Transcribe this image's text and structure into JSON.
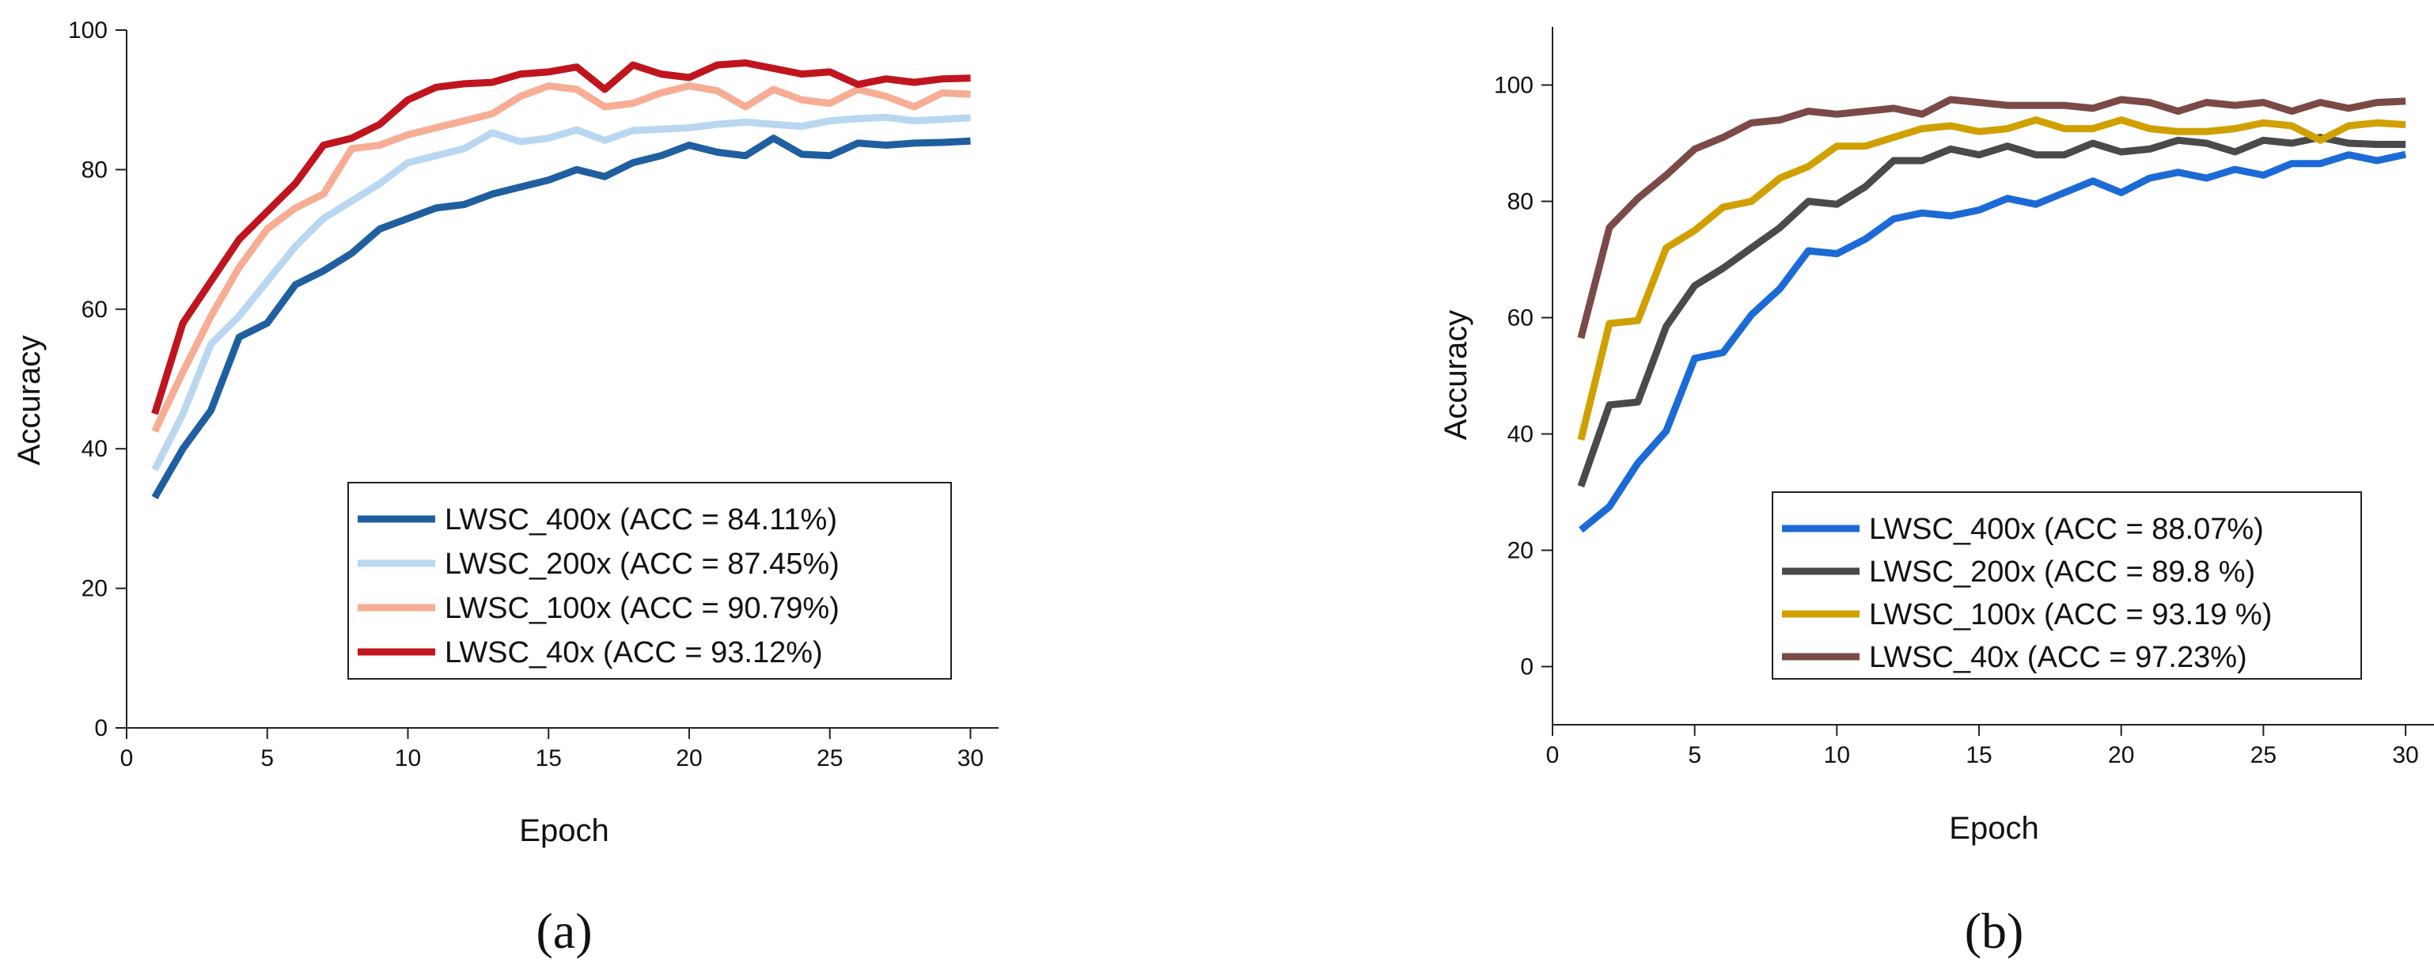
{
  "chart_data": [
    {
      "id": "a",
      "type": "line",
      "caption": "(a)",
      "xlabel": "Epoch",
      "ylabel": "Accuracy",
      "xlim": [
        0,
        31
      ],
      "ylim": [
        0,
        100
      ],
      "xticks": [
        0,
        5,
        10,
        15,
        20,
        25,
        30
      ],
      "yticks": [
        0,
        20,
        40,
        60,
        80,
        100
      ],
      "grid": false,
      "legend_position": "bottom-right",
      "x": [
        1,
        2,
        3,
        4,
        5,
        6,
        7,
        8,
        9,
        10,
        11,
        12,
        13,
        14,
        15,
        16,
        17,
        18,
        19,
        20,
        21,
        22,
        23,
        24,
        25,
        26,
        27,
        28,
        29,
        30
      ],
      "series": [
        {
          "name": "LWSC_400x (ACC = 84.11%)",
          "color": "#1f5fa0",
          "values": [
            33,
            40,
            45.5,
            56,
            58,
            63.5,
            65.5,
            68,
            71.5,
            73,
            74.5,
            75,
            76.5,
            77.5,
            78.5,
            80,
            79,
            81,
            82,
            83.5,
            82.5,
            82,
            84.5,
            82.2,
            82,
            83.8,
            83.5,
            83.8,
            83.9,
            84.1
          ]
        },
        {
          "name": "LWSC_200x (ACC = 87.45%)",
          "color": "#b9d7f0",
          "values": [
            37,
            45,
            55,
            59,
            64,
            69,
            73,
            75.5,
            78,
            81,
            82,
            83,
            85.3,
            84,
            84.5,
            85.7,
            84.2,
            85.6,
            85.8,
            86,
            86.5,
            86.8,
            86.5,
            86.2,
            87,
            87.3,
            87.5,
            87,
            87.2,
            87.45
          ]
        },
        {
          "name": "LWSC_100x (ACC = 90.79%)",
          "color": "#f7ad94",
          "values": [
            42.5,
            51,
            59,
            66,
            71.5,
            74.5,
            76.5,
            83,
            83.5,
            85,
            86,
            87,
            88,
            90.5,
            92,
            91.5,
            89,
            89.5,
            91,
            92,
            91.3,
            89,
            91.5,
            90,
            89.5,
            91.5,
            90.5,
            89,
            91,
            90.79
          ]
        },
        {
          "name": "LWSC_40x (ACC = 93.12%)",
          "color": "#c0151e",
          "values": [
            45,
            58,
            64,
            70,
            74,
            78,
            83.5,
            84.5,
            86.5,
            90,
            91.8,
            92.3,
            92.5,
            93.7,
            94,
            94.7,
            91.5,
            95,
            93.7,
            93.2,
            95,
            95.3,
            94.5,
            93.7,
            94,
            92.2,
            93,
            92.5,
            93,
            93.12
          ]
        }
      ]
    },
    {
      "id": "b",
      "type": "line",
      "caption": "(b)",
      "xlabel": "Epoch",
      "ylabel": "Accuracy",
      "xlim": [
        0,
        31
      ],
      "ylim": [
        -10,
        110
      ],
      "xticks": [
        0,
        5,
        10,
        15,
        20,
        25,
        30
      ],
      "yticks": [
        0,
        20,
        40,
        60,
        80,
        100
      ],
      "grid": false,
      "legend_position": "bottom-right",
      "x": [
        1,
        2,
        3,
        4,
        5,
        6,
        7,
        8,
        9,
        10,
        11,
        12,
        13,
        14,
        15,
        16,
        17,
        18,
        19,
        20,
        21,
        22,
        23,
        24,
        25,
        26,
        27,
        28,
        29,
        30
      ],
      "series": [
        {
          "name": "LWSC_400x (ACC = 88.07%)",
          "color": "#1c6ad6",
          "values": [
            23.5,
            27.5,
            35,
            40.5,
            53,
            54,
            60.5,
            65,
            71.5,
            71,
            73.5,
            77,
            78,
            77.5,
            78.5,
            80.5,
            79.5,
            81.5,
            83.5,
            81.5,
            84,
            85,
            84,
            85.5,
            84.5,
            86.5,
            86.5,
            88,
            87,
            88.07
          ]
        },
        {
          "name": "LWSC_200x (ACC = 89.8 %)",
          "color": "#4a4a4a",
          "values": [
            31,
            45,
            45.5,
            58.5,
            65.5,
            68.5,
            72,
            75.5,
            80,
            79.5,
            82.5,
            87,
            87,
            89,
            88,
            89.5,
            88,
            88,
            90,
            88.5,
            89,
            90.5,
            90,
            88.5,
            90.5,
            90,
            91,
            90,
            89.8,
            89.8
          ]
        },
        {
          "name": "LWSC_100x (ACC = 93.19 %)",
          "color": "#d0a000",
          "values": [
            39,
            59,
            59.5,
            72,
            75,
            79,
            80,
            84,
            86,
            89.5,
            89.5,
            91,
            92.5,
            93,
            92,
            92.5,
            94,
            92.5,
            92.5,
            94,
            92.5,
            92,
            92,
            92.5,
            93.5,
            93,
            90.5,
            93,
            93.5,
            93.19
          ]
        },
        {
          "name": "LWSC_40x (ACC = 97.23%)",
          "color": "#7b4a47",
          "values": [
            56.5,
            75.5,
            80.5,
            84.5,
            89,
            91,
            93.5,
            94,
            95.5,
            95,
            95.5,
            96,
            95,
            97.5,
            97,
            96.5,
            96.5,
            96.5,
            96,
            97.5,
            97,
            95.5,
            97,
            96.5,
            97,
            95.5,
            97,
            96,
            97,
            97.23
          ]
        }
      ]
    }
  ]
}
